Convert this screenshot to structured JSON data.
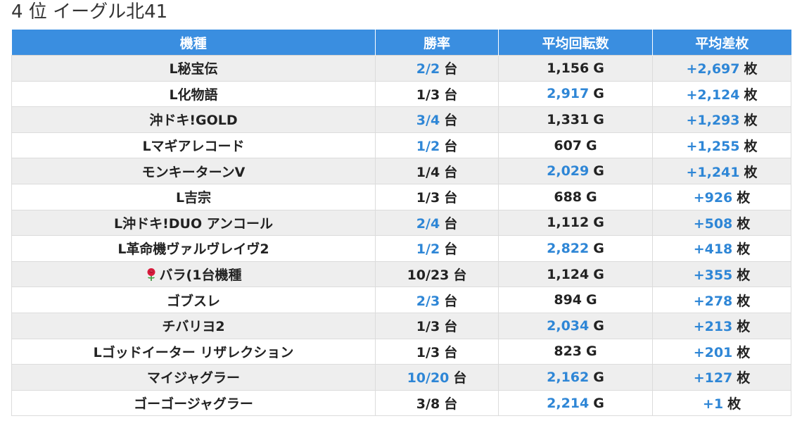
{
  "page_title": "4 位 イーグル北41",
  "colors": {
    "header_bg": "#3a8ee0",
    "accent": "#2e86d6",
    "row_alt": "#eeeeee"
  },
  "table": {
    "headers": [
      "機種",
      "勝率",
      "平均回転数",
      "平均差枚"
    ],
    "rows": [
      {
        "machine": "L秘宝伝",
        "win": "2/2",
        "win_hl": true,
        "spins": "1,156",
        "spins_hl": false,
        "diff": "+2,697"
      },
      {
        "machine": "L化物語",
        "win": "1/3",
        "win_hl": false,
        "spins": "2,917",
        "spins_hl": true,
        "diff": "+2,124"
      },
      {
        "machine": "沖ドキ!GOLD",
        "win": "3/4",
        "win_hl": true,
        "spins": "1,331",
        "spins_hl": false,
        "diff": "+1,293"
      },
      {
        "machine": "Lマギアレコード",
        "win": "1/2",
        "win_hl": true,
        "spins": "607",
        "spins_hl": false,
        "diff": "+1,255"
      },
      {
        "machine": "モンキーターンV",
        "win": "1/4",
        "win_hl": false,
        "spins": "2,029",
        "spins_hl": true,
        "diff": "+1,241"
      },
      {
        "machine": "L吉宗",
        "win": "1/3",
        "win_hl": false,
        "spins": "688",
        "spins_hl": false,
        "diff": "+926"
      },
      {
        "machine": "L沖ドキ!DUO アンコール",
        "win": "2/4",
        "win_hl": true,
        "spins": "1,112",
        "spins_hl": false,
        "diff": "+508"
      },
      {
        "machine": "L革命機ヴァルヴレイヴ2",
        "win": "1/2",
        "win_hl": true,
        "spins": "2,822",
        "spins_hl": true,
        "diff": "+418"
      },
      {
        "machine": "バラ(1台機種",
        "rose_icon": true,
        "win": "10/23",
        "win_hl": false,
        "spins": "1,124",
        "spins_hl": false,
        "diff": "+355"
      },
      {
        "machine": "ゴブスレ",
        "win": "2/3",
        "win_hl": true,
        "spins": "894",
        "spins_hl": false,
        "diff": "+278"
      },
      {
        "machine": "チバリヨ2",
        "win": "1/3",
        "win_hl": false,
        "spins": "2,034",
        "spins_hl": true,
        "diff": "+213"
      },
      {
        "machine": "Lゴッドイーター リザレクション",
        "win": "1/3",
        "win_hl": false,
        "spins": "823",
        "spins_hl": false,
        "diff": "+201"
      },
      {
        "machine": "マイジャグラー",
        "win": "10/20",
        "win_hl": true,
        "spins": "2,162",
        "spins_hl": true,
        "diff": "+127"
      },
      {
        "machine": "ゴーゴージャグラー",
        "win": "3/8",
        "win_hl": false,
        "spins": "2,214",
        "spins_hl": true,
        "diff": "+1"
      }
    ],
    "unit_win": "台",
    "unit_spins": "G",
    "unit_diff": "枚"
  }
}
